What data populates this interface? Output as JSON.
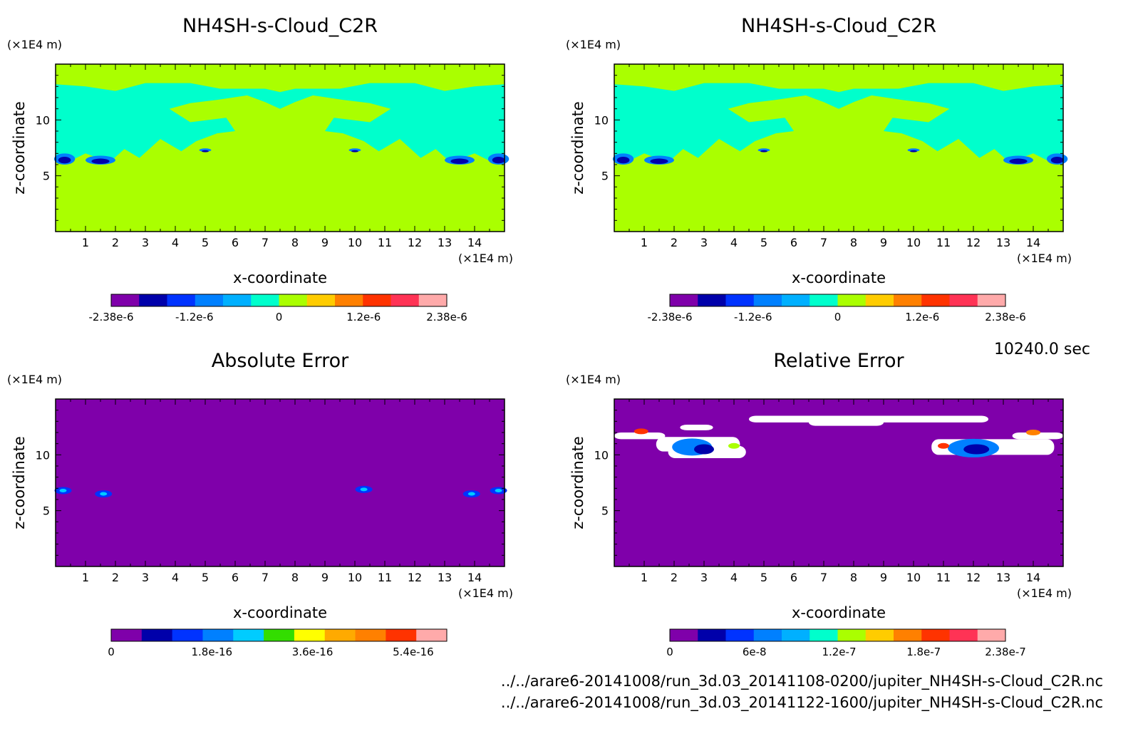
{
  "timestamp": "10240.0 sec",
  "files": [
    "../../arare6-20141008/run_3d.03_20141108-0200/jupiter_NH4SH-s-Cloud_C2R.nc",
    "../../arare6-20141008/run_3d.03_20141122-1600/jupiter_NH4SH-s-Cloud_C2R.nc"
  ],
  "colors": {
    "field_background": "#aaff00",
    "cloud_level": "#00ffcc",
    "error_background": "#7f00aa",
    "missing": "#ffffff"
  },
  "chart_data": [
    {
      "type": "heatmap",
      "title": "NH4SH-s-Cloud_C2R",
      "xlabel": "x-coordinate",
      "ylabel": "z-coordinate",
      "x_unit": "(×1E4 m)",
      "y_unit": "(×1E4 m)",
      "xlim": [
        0,
        15
      ],
      "ylim": [
        0,
        15
      ],
      "x_ticks": [
        "1",
        "2",
        "3",
        "4",
        "5",
        "6",
        "7",
        "8",
        "9",
        "10",
        "11",
        "12",
        "13",
        "14"
      ],
      "y_ticks": [
        "5",
        "10"
      ],
      "colorbar": {
        "colors": [
          "#7f00aa",
          "#0000aa",
          "#0033ff",
          "#0080ff",
          "#00b0ff",
          "#00ffcc",
          "#aaff00",
          "#ffcc00",
          "#ff8000",
          "#ff3300",
          "#ff3355",
          "#ffaaaa"
        ],
        "tick_labels": [
          "-2.38e-6",
          "-1.2e-6",
          "0",
          "1.2e-6",
          "2.38e-6"
        ],
        "min": -2.38e-06,
        "max": 2.38e-06
      }
    },
    {
      "type": "heatmap",
      "title": "NH4SH-s-Cloud_C2R",
      "xlabel": "x-coordinate",
      "ylabel": "z-coordinate",
      "x_unit": "(×1E4 m)",
      "y_unit": "(×1E4 m)",
      "xlim": [
        0,
        15
      ],
      "ylim": [
        0,
        15
      ],
      "x_ticks": [
        "1",
        "2",
        "3",
        "4",
        "5",
        "6",
        "7",
        "8",
        "9",
        "10",
        "11",
        "12",
        "13",
        "14"
      ],
      "y_ticks": [
        "5",
        "10"
      ],
      "colorbar": {
        "colors": [
          "#7f00aa",
          "#0000aa",
          "#0033ff",
          "#0080ff",
          "#00b0ff",
          "#00ffcc",
          "#aaff00",
          "#ffcc00",
          "#ff8000",
          "#ff3300",
          "#ff3355",
          "#ffaaaa"
        ],
        "tick_labels": [
          "-2.38e-6",
          "-1.2e-6",
          "0",
          "1.2e-6",
          "2.38e-6"
        ],
        "min": -2.38e-06,
        "max": 2.38e-06
      }
    },
    {
      "type": "heatmap",
      "title": "Absolute Error",
      "xlabel": "x-coordinate",
      "ylabel": "z-coordinate",
      "x_unit": "(×1E4 m)",
      "y_unit": "(×1E4 m)",
      "xlim": [
        0,
        15
      ],
      "ylim": [
        0,
        15
      ],
      "x_ticks": [
        "1",
        "2",
        "3",
        "4",
        "5",
        "6",
        "7",
        "8",
        "9",
        "10",
        "11",
        "12",
        "13",
        "14"
      ],
      "y_ticks": [
        "5",
        "10"
      ],
      "colorbar": {
        "colors": [
          "#7f00aa",
          "#0000aa",
          "#0033ff",
          "#0080ff",
          "#00ccff",
          "#33dd00",
          "#ffff00",
          "#ffaa00",
          "#ff8000",
          "#ff3300",
          "#ffaaaa"
        ],
        "tick_labels": [
          "0",
          "1.8e-16",
          "3.6e-16",
          "5.4e-16"
        ],
        "min": 0,
        "max": 6e-16
      }
    },
    {
      "type": "heatmap",
      "title": "Relative Error",
      "xlabel": "x-coordinate",
      "ylabel": "z-coordinate",
      "x_unit": "(×1E4 m)",
      "y_unit": "(×1E4 m)",
      "xlim": [
        0,
        15
      ],
      "ylim": [
        0,
        15
      ],
      "x_ticks": [
        "1",
        "2",
        "3",
        "4",
        "5",
        "6",
        "7",
        "8",
        "9",
        "10",
        "11",
        "12",
        "13",
        "14"
      ],
      "y_ticks": [
        "5",
        "10"
      ],
      "colorbar": {
        "colors": [
          "#7f00aa",
          "#0000aa",
          "#0033ff",
          "#0080ff",
          "#00b0ff",
          "#00ffcc",
          "#aaff00",
          "#ffcc00",
          "#ff8000",
          "#ff3300",
          "#ff3355",
          "#ffaaaa"
        ],
        "tick_labels": [
          "0",
          "6e-8",
          "1.2e-7",
          "1.8e-7",
          "2.38e-7"
        ],
        "min": 0,
        "max": 2.38e-07
      }
    }
  ]
}
